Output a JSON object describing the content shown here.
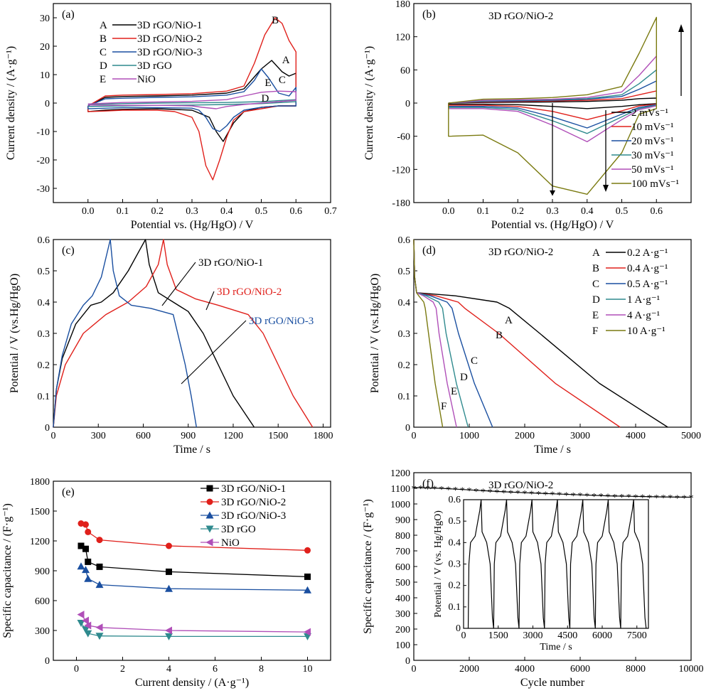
{
  "colors": {
    "black": "#000000",
    "red": "#e0201b",
    "blue": "#1a4fa0",
    "teal": "#2f8a8e",
    "purple": "#b04fb8",
    "red2": "#c91e1e",
    "olive": "#7a7a10",
    "green2": "#3c8a6a"
  },
  "chart_data": [
    {
      "panel": "(a)",
      "type": "line",
      "xlabel": "Potential vs. (Hg/HgO) / V",
      "ylabel": "Current density / (A·g⁻¹)",
      "xlim": [
        -0.1,
        0.7
      ],
      "ylim": [
        -35,
        35
      ],
      "xticks": [
        "0.0",
        "0.1",
        "0.2",
        "0.3",
        "0.4",
        "0.5",
        "0.6",
        "0.7"
      ],
      "yticks": [
        "-30",
        "-20",
        "-10",
        "0",
        "10",
        "20",
        "30"
      ],
      "legend": [
        {
          "letter": "A",
          "name": "3D rGO/NiO-1",
          "color": "#000000"
        },
        {
          "letter": "B",
          "name": "3D rGO/NiO-2",
          "color": "#e0201b"
        },
        {
          "letter": "C",
          "name": "3D rGO/NiO-3",
          "color": "#1a4fa0"
        },
        {
          "letter": "D",
          "name": "3D rGO",
          "color": "#2f8a8e"
        },
        {
          "letter": "E",
          "name": "NiO",
          "color": "#b04fb8"
        }
      ],
      "series": [
        {
          "name": "A",
          "color": "#000000",
          "x": [
            0,
            0.05,
            0.1,
            0.2,
            0.3,
            0.4,
            0.45,
            0.5,
            0.53,
            0.56,
            0.58,
            0.6,
            0.6,
            0.55,
            0.5,
            0.45,
            0.42,
            0.39,
            0.37,
            0.35,
            0.3,
            0.2,
            0.1,
            0.05,
            0,
            0
          ],
          "y": [
            -1,
            2,
            2.3,
            2.5,
            2.8,
            3.5,
            5,
            12,
            15,
            11,
            9.5,
            10.5,
            -1,
            -1,
            -1.5,
            -3,
            -7,
            -13.5,
            -10,
            -5,
            -2.5,
            -2,
            -2.2,
            -2.5,
            -3,
            -1
          ]
        },
        {
          "name": "B",
          "color": "#e0201b",
          "x": [
            0,
            0.05,
            0.1,
            0.2,
            0.3,
            0.4,
            0.45,
            0.48,
            0.51,
            0.54,
            0.56,
            0.58,
            0.6,
            0.6,
            0.55,
            0.5,
            0.45,
            0.42,
            0.4,
            0.38,
            0.36,
            0.34,
            0.32,
            0.3,
            0.25,
            0.2,
            0.1,
            0.05,
            0,
            0
          ],
          "y": [
            -1,
            2.5,
            2.8,
            3,
            3.3,
            4.2,
            6,
            14,
            24,
            30,
            28,
            22,
            18,
            -1,
            -1,
            -2,
            -3,
            -6,
            -12,
            -20,
            -27,
            -22,
            -10,
            -5,
            -3,
            -2.5,
            -2.5,
            -2.8,
            -3,
            -1
          ]
        },
        {
          "name": "C",
          "color": "#1a4fa0",
          "x": [
            0,
            0.05,
            0.1,
            0.2,
            0.3,
            0.4,
            0.45,
            0.48,
            0.5,
            0.52,
            0.55,
            0.58,
            0.6,
            0.6,
            0.55,
            0.5,
            0.45,
            0.42,
            0.4,
            0.38,
            0.36,
            0.34,
            0.32,
            0.3,
            0.2,
            0.1,
            0,
            0
          ],
          "y": [
            -1,
            1.5,
            1.7,
            2,
            2.2,
            2.8,
            4,
            8,
            12,
            9,
            3.5,
            2.5,
            5.5,
            -1,
            -1,
            -1.5,
            -2.5,
            -5,
            -8,
            -10,
            -9,
            -5,
            -2.5,
            -1.8,
            -1.6,
            -1.6,
            -2,
            -1
          ]
        },
        {
          "name": "D",
          "color": "#2f8a8e",
          "x": [
            0,
            0.1,
            0.2,
            0.3,
            0.4,
            0.5,
            0.6,
            0.6,
            0.5,
            0.4,
            0.3,
            0.2,
            0.1,
            0
          ],
          "y": [
            -0.5,
            -0.2,
            0,
            0.1,
            0.2,
            0.5,
            1.2,
            0.5,
            -0.2,
            -0.5,
            -0.7,
            -0.8,
            -1,
            -1.2
          ]
        },
        {
          "name": "E",
          "color": "#b04fb8",
          "x": [
            0,
            0.1,
            0.2,
            0.3,
            0.4,
            0.45,
            0.5,
            0.55,
            0.6,
            0.6,
            0.55,
            0.5,
            0.45,
            0.4,
            0.37,
            0.33,
            0.3,
            0.2,
            0.1,
            0
          ],
          "y": [
            -0.3,
            0.2,
            0.4,
            0.6,
            1.2,
            2.5,
            3.8,
            4.2,
            4,
            1,
            0.5,
            0,
            -0.5,
            -1.2,
            -2,
            -1.5,
            -1,
            -0.8,
            -0.8,
            -0.7
          ]
        }
      ],
      "annotations": [
        "A",
        "B",
        "C",
        "D",
        "E"
      ]
    },
    {
      "panel": "(b)",
      "type": "line",
      "title": "3D rGO/NiO-2",
      "xlabel": "Potential vs. (Hg/HgO) / V",
      "ylabel": "Current density / (A·g⁻¹)",
      "xlim": [
        -0.1,
        0.7
      ],
      "ylim": [
        -180,
        180
      ],
      "xticks": [
        "0.0",
        "0.1",
        "0.2",
        "0.3",
        "0.4",
        "0.5",
        "0.6"
      ],
      "yticks": [
        "-180",
        "-120",
        "-60",
        "0",
        "60",
        "120",
        "180"
      ],
      "legend": [
        {
          "name": "2 mVs⁻¹",
          "color": "#000000"
        },
        {
          "name": "10 mVs⁻¹",
          "color": "#e0201b"
        },
        {
          "name": "20 mVs⁻¹",
          "color": "#1a4fa0"
        },
        {
          "name": "30 mVs⁻¹",
          "color": "#2f8a8e"
        },
        {
          "name": "50 mVs⁻¹",
          "color": "#b04fb8"
        },
        {
          "name": "100 mVs⁻¹",
          "color": "#7a7a10"
        }
      ],
      "series": [
        {
          "name": "2 mVs⁻¹",
          "color": "#000000",
          "anod": [
            0,
            1,
            1.5,
            2,
            3,
            5,
            8,
            9
          ],
          "cath": [
            -2,
            -2,
            -3,
            -6,
            -10,
            -6,
            -3,
            -1
          ]
        },
        {
          "name": "10 mVs⁻¹",
          "color": "#e0201b",
          "anod": [
            0,
            2,
            3,
            4,
            5,
            8,
            15,
            22
          ],
          "cath": [
            -4,
            -4,
            -6,
            -15,
            -30,
            -14,
            -5,
            -2
          ]
        },
        {
          "name": "20 mVs⁻¹",
          "color": "#1a4fa0",
          "anod": [
            0,
            3,
            4,
            5,
            7,
            12,
            25,
            40
          ],
          "cath": [
            -6,
            -6,
            -9,
            -25,
            -45,
            -20,
            -8,
            -3
          ]
        },
        {
          "name": "30 mVs⁻¹",
          "color": "#2f8a8e",
          "anod": [
            0,
            4,
            5,
            6,
            8,
            15,
            35,
            60
          ],
          "cath": [
            -8,
            -8,
            -12,
            -32,
            -55,
            -25,
            -10,
            -4
          ]
        },
        {
          "name": "50 mVs⁻¹",
          "color": "#b04fb8",
          "anod": [
            0,
            5,
            6,
            7,
            10,
            20,
            50,
            85
          ],
          "cath": [
            -10,
            -10,
            -15,
            -40,
            -70,
            -30,
            -12,
            -5
          ]
        },
        {
          "name": "100 mVs⁻¹",
          "color": "#7a7a10",
          "anod": [
            0,
            7,
            8,
            10,
            15,
            30,
            90,
            155
          ],
          "cath": [
            -60,
            -58,
            -90,
            -150,
            -165,
            -90,
            -20,
            -10
          ]
        }
      ],
      "series_x": [
        0,
        0.1,
        0.2,
        0.3,
        0.4,
        0.5,
        0.55,
        0.6
      ]
    },
    {
      "panel": "(c)",
      "type": "line",
      "xlabel": "Time / s",
      "ylabel": "Potential / V (vs.Hg/HgO)",
      "xlim": [
        0,
        1850
      ],
      "ylim": [
        0,
        0.6
      ],
      "xticks": [
        "0",
        "300",
        "600",
        "900",
        "1200",
        "1500",
        "1800"
      ],
      "yticks": [
        "0",
        "0.1",
        "0.2",
        "0.3",
        "0.4",
        "0.5",
        "0.6"
      ],
      "labels": [
        {
          "name": "3D rGO/NiO-1",
          "color": "#000000"
        },
        {
          "name": "3D rGO/NiO-2",
          "color": "#e0201b"
        },
        {
          "name": "3D rGO/NiO-3",
          "color": "#1a4fa0"
        }
      ],
      "series": [
        {
          "name": "3D rGO/NiO-1",
          "color": "#000000",
          "x": [
            0,
            20,
            60,
            150,
            250,
            320,
            400,
            500,
            580,
            615,
            640,
            700,
            800,
            900,
            1000,
            1100,
            1200,
            1340
          ],
          "y": [
            0,
            0.12,
            0.22,
            0.33,
            0.39,
            0.4,
            0.43,
            0.5,
            0.57,
            0.6,
            0.52,
            0.43,
            0.4,
            0.37,
            0.3,
            0.2,
            0.1,
            0
          ]
        },
        {
          "name": "3D rGO/NiO-2",
          "color": "#e0201b",
          "x": [
            0,
            20,
            80,
            200,
            350,
            500,
            620,
            700,
            735,
            760,
            820,
            950,
            1100,
            1300,
            1400,
            1500,
            1600,
            1730
          ],
          "y": [
            0,
            0.1,
            0.2,
            0.3,
            0.36,
            0.4,
            0.45,
            0.52,
            0.6,
            0.52,
            0.44,
            0.41,
            0.39,
            0.36,
            0.3,
            0.2,
            0.1,
            0
          ]
        },
        {
          "name": "3D rGO/NiO-3",
          "color": "#1a4fa0",
          "x": [
            0,
            20,
            60,
            120,
            200,
            260,
            320,
            360,
            380,
            400,
            440,
            520,
            650,
            800,
            880,
            920,
            955
          ],
          "y": [
            0,
            0.12,
            0.23,
            0.33,
            0.39,
            0.42,
            0.48,
            0.56,
            0.6,
            0.5,
            0.42,
            0.39,
            0.38,
            0.36,
            0.2,
            0.1,
            0
          ]
        }
      ]
    },
    {
      "panel": "(d)",
      "type": "line",
      "title": "3D rGO/NiO-2",
      "xlabel": "Time / s",
      "ylabel": "Potential / V (vs.Hg/HgO)",
      "xlim": [
        0,
        5000
      ],
      "ylim": [
        0,
        0.6
      ],
      "xticks": [
        "0",
        "1000",
        "2000",
        "3000",
        "4000",
        "5000"
      ],
      "yticks": [
        "0",
        "0.1",
        "0.2",
        "0.3",
        "0.4",
        "0.5",
        "0.6"
      ],
      "legend": [
        {
          "letter": "A",
          "name": "0.2 A·g⁻¹",
          "color": "#000000"
        },
        {
          "letter": "B",
          "name": "0.4 A·g⁻¹",
          "color": "#e0201b"
        },
        {
          "letter": "C",
          "name": "0.5 A·g⁻¹",
          "color": "#1a4fa0"
        },
        {
          "letter": "D",
          "name": "1 A·g⁻¹",
          "color": "#2f8a8e"
        },
        {
          "letter": "E",
          "name": "4 A·g⁻¹",
          "color": "#b04fb8"
        },
        {
          "letter": "F",
          "name": "10 A·g⁻¹",
          "color": "#7a7a10"
        }
      ],
      "series": [
        {
          "name": "A",
          "color": "#000000",
          "end": 4580,
          "knee": 1500
        },
        {
          "name": "B",
          "color": "#e0201b",
          "end": 3720,
          "knee": 800
        },
        {
          "name": "C",
          "color": "#1a4fa0",
          "end": 1420,
          "knee": 600
        },
        {
          "name": "D",
          "color": "#2f8a8e",
          "end": 980,
          "knee": 450
        },
        {
          "name": "E",
          "color": "#b04fb8",
          "end": 770,
          "knee": 350
        },
        {
          "name": "F",
          "color": "#7a7a10",
          "end": 520,
          "knee": 180
        }
      ]
    },
    {
      "panel": "(e)",
      "type": "scatter",
      "xlabel": "Current density / (A·g⁻¹)",
      "ylabel": "Specific capacitance / (F·g⁻¹)",
      "xlim": [
        -1,
        11
      ],
      "ylim": [
        0,
        1800
      ],
      "xticks": [
        "0",
        "2",
        "4",
        "6",
        "8",
        "10"
      ],
      "yticks": [
        "0",
        "300",
        "600",
        "900",
        "1200",
        "1500",
        "1800"
      ],
      "x": [
        0.2,
        0.4,
        0.5,
        1,
        4,
        10
      ],
      "series": [
        {
          "name": "3D rGO/NiO-1",
          "color": "#000000",
          "marker": "square",
          "values": [
            1150,
            1120,
            990,
            940,
            890,
            840
          ]
        },
        {
          "name": "3D rGO/NiO-2",
          "color": "#e0201b",
          "marker": "circle",
          "values": [
            1375,
            1365,
            1290,
            1210,
            1150,
            1105
          ]
        },
        {
          "name": "3D rGO/NiO-3",
          "color": "#1a4fa0",
          "marker": "triangle-up",
          "values": [
            945,
            910,
            820,
            760,
            720,
            705
          ]
        },
        {
          "name": "3D rGO",
          "color": "#2f8a8e",
          "marker": "triangle-down",
          "values": [
            375,
            310,
            270,
            245,
            240,
            240
          ]
        },
        {
          "name": "NiO",
          "color": "#b04fb8",
          "marker": "triangle-left",
          "values": [
            460,
            400,
            350,
            330,
            300,
            285
          ]
        }
      ]
    },
    {
      "panel": "(f)",
      "type": "line",
      "title": "3D rGO/NiO-2",
      "xlabel": "Cycle number",
      "ylabel": "Specific capacitance / (F·g⁻¹)",
      "xlim": [
        0,
        10000
      ],
      "ylim": [
        0,
        1200
      ],
      "xticks": [
        "0",
        "2000",
        "4000",
        "6000",
        "8000",
        "10000"
      ],
      "yticks": [
        "0",
        "100",
        "200",
        "300",
        "400",
        "500",
        "600",
        "700",
        "800",
        "900",
        "1000",
        "1100",
        "1200"
      ],
      "series": [
        {
          "name": "",
          "color": "#000000",
          "x": [
            0,
            1000,
            2000,
            3000,
            4000,
            5000,
            6000,
            7000,
            8000,
            9000,
            10000
          ],
          "values": [
            1105,
            1100,
            1090,
            1080,
            1072,
            1065,
            1058,
            1052,
            1048,
            1045,
            1043
          ]
        }
      ],
      "inset": {
        "xlabel": "Time / s",
        "ylabel": "Potential / V (vs. Hg/HgO)",
        "xlim": [
          0,
          8000
        ],
        "ylim": [
          0,
          0.6
        ],
        "xticks": [
          "0",
          "1500",
          "3000",
          "4500",
          "6000",
          "7500"
        ],
        "yticks": [
          "0",
          "0.1",
          "0.2",
          "0.3",
          "0.4",
          "0.5",
          "0.6"
        ],
        "cycles": 7,
        "period": 1100
      }
    }
  ]
}
